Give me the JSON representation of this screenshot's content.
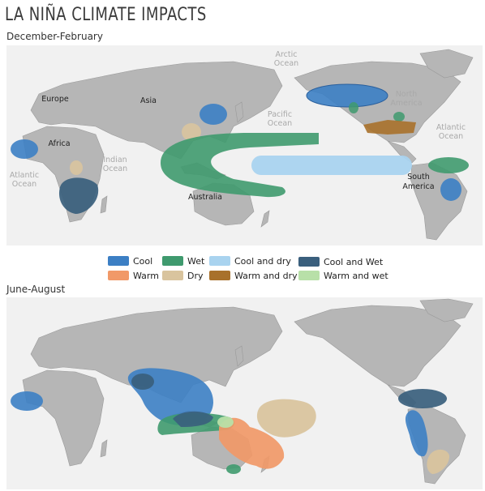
{
  "title": "LA NIÑA CLIMATE IMPACTS",
  "panels": [
    {
      "season": "December-February",
      "labels": {
        "arctic": [
          "Arctic",
          "Ocean"
        ],
        "europe": "Europe",
        "asia": "Asia",
        "africa": "Africa",
        "pacific": [
          "Pacific",
          "Ocean"
        ],
        "north_america": [
          "North",
          "America"
        ],
        "atlantic_w": [
          "Atlantic",
          "Ocean"
        ],
        "atlantic_e": [
          "Atlantic",
          "Ocean"
        ],
        "indian": [
          "Indian",
          "Ocean"
        ],
        "australia": "Australia",
        "south_america": [
          "South",
          "America"
        ]
      }
    },
    {
      "season": "June-August"
    }
  ],
  "legend": [
    {
      "label": "Cool",
      "color": "#3c7fc4"
    },
    {
      "label": "Wet",
      "color": "#3f9a6e"
    },
    {
      "label": "Cool and dry",
      "color": "#a9d3ef"
    },
    {
      "label": "Cool and Wet",
      "color": "#3a5f7d"
    },
    {
      "label": "Warm",
      "color": "#f19968"
    },
    {
      "label": "Dry",
      "color": "#d9c49e"
    },
    {
      "label": "Warm and dry",
      "color": "#a8712b"
    },
    {
      "label": "Warm and wet",
      "color": "#b8e0a8"
    }
  ]
}
